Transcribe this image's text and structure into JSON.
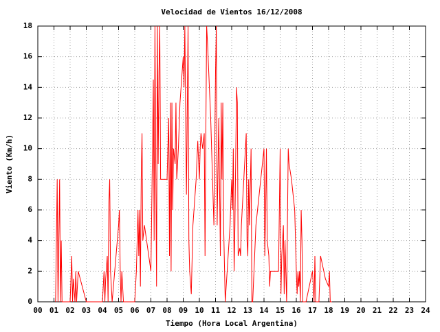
{
  "chart_data": {
    "type": "line",
    "title": "Velocidad de Vientos 16/12/2008",
    "xlabel": "Tiempo (Hora Local Argentina)",
    "ylabel": "Viento (Km/h)",
    "x": [
      1.1,
      1.2,
      1.25,
      1.3,
      1.35,
      1.4,
      1.45,
      1.5,
      2.0,
      2.1,
      2.15,
      2.2,
      2.3,
      2.35,
      2.4,
      2.5,
      3.0,
      4.0,
      4.1,
      4.15,
      4.2,
      4.3,
      4.35,
      4.4,
      4.45,
      4.5,
      4.6,
      5.0,
      5.05,
      5.1,
      5.15,
      5.2,
      5.3,
      6.0,
      6.1,
      6.2,
      6.25,
      6.3,
      6.35,
      6.4,
      6.45,
      6.5,
      6.6,
      7.0,
      7.1,
      7.15,
      7.2,
      7.25,
      7.3,
      7.35,
      7.4,
      7.45,
      7.5,
      7.55,
      7.6,
      8.0,
      8.1,
      8.15,
      8.2,
      8.25,
      8.3,
      8.35,
      8.4,
      8.5,
      8.55,
      8.6,
      8.7,
      8.8,
      9.0,
      9.05,
      9.1,
      9.2,
      9.3,
      9.35,
      9.4,
      9.5,
      9.6,
      9.8,
      9.9,
      10.0,
      10.05,
      10.1,
      10.2,
      10.3,
      10.35,
      10.4,
      10.45,
      10.5,
      10.7,
      10.9,
      11.0,
      11.05,
      11.1,
      11.2,
      11.3,
      11.35,
      11.4,
      11.45,
      11.5,
      11.6,
      11.9,
      12.0,
      12.05,
      12.1,
      12.15,
      12.2,
      12.3,
      12.35,
      12.4,
      12.5,
      12.55,
      12.6,
      12.8,
      12.9,
      12.95,
      13.0,
      13.05,
      13.1,
      13.2,
      13.25,
      13.3,
      13.5,
      13.8,
      14.0,
      14.05,
      14.1,
      14.15,
      14.2,
      14.3,
      14.35,
      14.4,
      14.8,
      14.9,
      15.0,
      15.05,
      15.1,
      15.2,
      15.25,
      15.3,
      15.4,
      15.5,
      15.55,
      15.7,
      15.9,
      16.0,
      16.05,
      16.1,
      16.15,
      16.2,
      16.25,
      16.3,
      16.35,
      16.4,
      16.6,
      17.0,
      17.1,
      17.15,
      17.2,
      17.4,
      17.5,
      17.8,
      18.0,
      18.05,
      18.1,
      18.2
    ],
    "series": [
      {
        "name": "Viento",
        "color": "#ff0000",
        "values": [
          0,
          8,
          0,
          4,
          8,
          0,
          4,
          0,
          0,
          3,
          0,
          1.5,
          0,
          2,
          0,
          2,
          0,
          0,
          2,
          0,
          1.5,
          3,
          0,
          6.5,
          8,
          2,
          0,
          5,
          6,
          2,
          0,
          2,
          0,
          0,
          2,
          6,
          3,
          6,
          1,
          8,
          11,
          4,
          5,
          2,
          10,
          14.5,
          4,
          18,
          9,
          1,
          18,
          9,
          15,
          18,
          8,
          8,
          12,
          3,
          13,
          2,
          13,
          6,
          10,
          9,
          13,
          8,
          10,
          13,
          16,
          14,
          18,
          7,
          18,
          4,
          2,
          0.5,
          5,
          8,
          10.5,
          8,
          10,
          11,
          10,
          11,
          3,
          11,
          18,
          17,
          12,
          5,
          15,
          18,
          5,
          12,
          3,
          13,
          8,
          13,
          5,
          0,
          5,
          8,
          6,
          10,
          2,
          5,
          14,
          13,
          3,
          3.5,
          3,
          5,
          9,
          11,
          4,
          3,
          8,
          5,
          10,
          0,
          0,
          5,
          8,
          10,
          3,
          6,
          10,
          4,
          3,
          1,
          2,
          2,
          2,
          10,
          0.5,
          3,
          5,
          0.5,
          4,
          0,
          10,
          9,
          8,
          6,
          2,
          0.5,
          2,
          1,
          2,
          0,
          6,
          4,
          0,
          0,
          2,
          0,
          3,
          0,
          0,
          3,
          1.5,
          1,
          2,
          0,
          0
        ]
      }
    ],
    "xlim": [
      0,
      24
    ],
    "ylim": [
      0,
      18
    ],
    "xticks": [
      {
        "value": 0,
        "label": "00"
      },
      {
        "value": 1,
        "label": "01"
      },
      {
        "value": 2,
        "label": "02"
      },
      {
        "value": 3,
        "label": "03"
      },
      {
        "value": 4,
        "label": "04"
      },
      {
        "value": 5,
        "label": "05"
      },
      {
        "value": 6,
        "label": "06"
      },
      {
        "value": 7,
        "label": "07"
      },
      {
        "value": 8,
        "label": "08"
      },
      {
        "value": 9,
        "label": "09"
      },
      10,
      11,
      12,
      13,
      14,
      15,
      16,
      17,
      18,
      19,
      20,
      21,
      22,
      23,
      24
    ],
    "yticks": [
      0,
      2,
      4,
      6,
      8,
      10,
      12,
      14,
      16,
      18
    ],
    "grid": true
  }
}
